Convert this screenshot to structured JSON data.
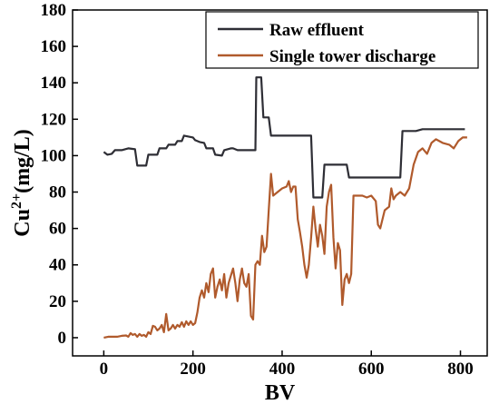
{
  "chart_data": {
    "type": "line",
    "xlabel": "BV",
    "ylabel_base": "Cu",
    "ylabel_sup": "2+",
    "ylabel_unit": "(mg/L)",
    "xlim": [
      -70,
      860
    ],
    "ylim": [
      -10,
      180
    ],
    "xticks": [
      0,
      200,
      400,
      600,
      800
    ],
    "yticks": [
      0,
      20,
      40,
      60,
      80,
      100,
      120,
      140,
      160,
      180
    ],
    "grid": false,
    "legend_position": "top-right",
    "series": [
      {
        "name": "Raw effluent",
        "color": "#2e2e35",
        "points": [
          [
            0,
            102
          ],
          [
            8,
            100.5
          ],
          [
            18,
            101
          ],
          [
            25,
            103
          ],
          [
            40,
            103
          ],
          [
            55,
            104
          ],
          [
            70,
            103.5
          ],
          [
            75,
            94.5
          ],
          [
            95,
            94.5
          ],
          [
            100,
            100.5
          ],
          [
            120,
            100.5
          ],
          [
            125,
            104
          ],
          [
            140,
            104
          ],
          [
            145,
            106
          ],
          [
            160,
            106
          ],
          [
            165,
            108
          ],
          [
            175,
            108
          ],
          [
            180,
            111
          ],
          [
            200,
            110
          ],
          [
            205,
            108.5
          ],
          [
            215,
            107.5
          ],
          [
            225,
            107
          ],
          [
            230,
            104
          ],
          [
            245,
            104
          ],
          [
            250,
            100.5
          ],
          [
            265,
            100
          ],
          [
            270,
            103
          ],
          [
            285,
            104
          ],
          [
            290,
            104
          ],
          [
            300,
            103
          ],
          [
            340,
            103
          ],
          [
            342,
            143
          ],
          [
            353,
            143
          ],
          [
            358,
            121
          ],
          [
            370,
            121
          ],
          [
            375,
            111
          ],
          [
            465,
            111
          ],
          [
            470,
            77
          ],
          [
            490,
            77
          ],
          [
            495,
            95
          ],
          [
            545,
            95
          ],
          [
            550,
            88
          ],
          [
            665,
            88
          ],
          [
            670,
            113.5
          ],
          [
            700,
            113.5
          ],
          [
            715,
            114.5
          ],
          [
            810,
            114.5
          ]
        ]
      },
      {
        "name": "Single tower discharge",
        "color": "#b05a2c",
        "points": [
          [
            0,
            0
          ],
          [
            10,
            0.5
          ],
          [
            20,
            0.5
          ],
          [
            30,
            0.5
          ],
          [
            40,
            1
          ],
          [
            50,
            1.2
          ],
          [
            55,
            0.5
          ],
          [
            60,
            2.5
          ],
          [
            65,
            1.5
          ],
          [
            70,
            2
          ],
          [
            75,
            0.5
          ],
          [
            80,
            2
          ],
          [
            85,
            1
          ],
          [
            90,
            1.5
          ],
          [
            95,
            0.5
          ],
          [
            100,
            3
          ],
          [
            105,
            2
          ],
          [
            110,
            6.5
          ],
          [
            115,
            6
          ],
          [
            120,
            4
          ],
          [
            125,
            5
          ],
          [
            130,
            7
          ],
          [
            135,
            3
          ],
          [
            140,
            13
          ],
          [
            145,
            4
          ],
          [
            150,
            5
          ],
          [
            155,
            7
          ],
          [
            160,
            5
          ],
          [
            165,
            7
          ],
          [
            170,
            6
          ],
          [
            175,
            8.5
          ],
          [
            180,
            6
          ],
          [
            185,
            9
          ],
          [
            190,
            7
          ],
          [
            195,
            9
          ],
          [
            200,
            7
          ],
          [
            205,
            8
          ],
          [
            210,
            14
          ],
          [
            215,
            22
          ],
          [
            220,
            26
          ],
          [
            225,
            22
          ],
          [
            230,
            30
          ],
          [
            235,
            25
          ],
          [
            240,
            35
          ],
          [
            245,
            38
          ],
          [
            250,
            22
          ],
          [
            255,
            28
          ],
          [
            260,
            32
          ],
          [
            265,
            26
          ],
          [
            270,
            35
          ],
          [
            275,
            22
          ],
          [
            280,
            30
          ],
          [
            285,
            34
          ],
          [
            290,
            38
          ],
          [
            295,
            30
          ],
          [
            300,
            20
          ],
          [
            305,
            32
          ],
          [
            310,
            38
          ],
          [
            315,
            30
          ],
          [
            320,
            28
          ],
          [
            325,
            35
          ],
          [
            330,
            12
          ],
          [
            335,
            10
          ],
          [
            340,
            40
          ],
          [
            345,
            42
          ],
          [
            350,
            40
          ],
          [
            355,
            56
          ],
          [
            360,
            47
          ],
          [
            365,
            50
          ],
          [
            370,
            70
          ],
          [
            375,
            90
          ],
          [
            380,
            78
          ],
          [
            390,
            80
          ],
          [
            400,
            82
          ],
          [
            410,
            83
          ],
          [
            415,
            86
          ],
          [
            420,
            80
          ],
          [
            425,
            83
          ],
          [
            430,
            83
          ],
          [
            435,
            65
          ],
          [
            440,
            58
          ],
          [
            445,
            50
          ],
          [
            450,
            40
          ],
          [
            455,
            33
          ],
          [
            460,
            40
          ],
          [
            465,
            55
          ],
          [
            470,
            72
          ],
          [
            475,
            60
          ],
          [
            480,
            50
          ],
          [
            485,
            62
          ],
          [
            490,
            56
          ],
          [
            495,
            46
          ],
          [
            500,
            72
          ],
          [
            505,
            80
          ],
          [
            510,
            84
          ],
          [
            515,
            55
          ],
          [
            520,
            38
          ],
          [
            525,
            52
          ],
          [
            530,
            48
          ],
          [
            535,
            18
          ],
          [
            540,
            32
          ],
          [
            545,
            35
          ],
          [
            550,
            30
          ],
          [
            555,
            35
          ],
          [
            560,
            78
          ],
          [
            570,
            78
          ],
          [
            580,
            78
          ],
          [
            590,
            77
          ],
          [
            600,
            78
          ],
          [
            610,
            75
          ],
          [
            615,
            62
          ],
          [
            620,
            60
          ],
          [
            630,
            70
          ],
          [
            640,
            72
          ],
          [
            645,
            82
          ],
          [
            650,
            76
          ],
          [
            655,
            78
          ],
          [
            665,
            80
          ],
          [
            675,
            78
          ],
          [
            685,
            82
          ],
          [
            695,
            95
          ],
          [
            705,
            102
          ],
          [
            715,
            104
          ],
          [
            725,
            101
          ],
          [
            735,
            107
          ],
          [
            745,
            109
          ],
          [
            760,
            107
          ],
          [
            775,
            106
          ],
          [
            785,
            104
          ],
          [
            795,
            108
          ],
          [
            805,
            110
          ],
          [
            815,
            110
          ]
        ]
      }
    ]
  }
}
